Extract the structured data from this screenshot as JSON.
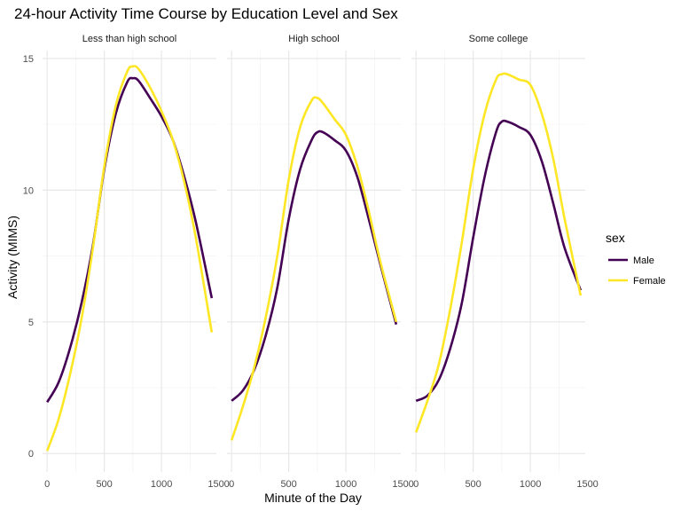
{
  "chart_data": {
    "type": "line",
    "title": "24-hour Activity Time Course by Education Level and Sex",
    "xlabel": "Minute of the Day",
    "ylabel": "Activity (MIMS)",
    "xlim": [
      -40,
      1480
    ],
    "ylim": [
      -0.7,
      15.3
    ],
    "x_ticks": [
      0,
      500,
      1000,
      1500
    ],
    "y_ticks": [
      0,
      5,
      10,
      15
    ],
    "grid": true,
    "legend": {
      "title": "sex",
      "position": "right"
    },
    "panels": [
      {
        "label": "Less than high school",
        "series": [
          {
            "name": "Male",
            "color": "#440154",
            "x": [
              0,
              100,
              200,
              300,
              400,
              500,
              600,
              700,
              750,
              800,
              900,
              1000,
              1100,
              1200,
              1300,
              1440
            ],
            "y": [
              1.95,
              2.7,
              4.0,
              5.7,
              7.9,
              10.8,
              12.9,
              14.1,
              14.25,
              14.15,
              13.5,
              12.8,
              11.9,
              10.5,
              8.8,
              5.9
            ]
          },
          {
            "name": "Female",
            "color": "#FDE725",
            "x": [
              0,
              100,
              200,
              300,
              400,
              500,
              600,
              700,
              750,
              800,
              900,
              1000,
              1100,
              1200,
              1300,
              1440
            ],
            "y": [
              0.1,
              1.3,
              3.0,
              5.1,
              7.8,
              10.9,
              13.2,
              14.5,
              14.7,
              14.6,
              13.9,
              13.0,
              11.9,
              10.3,
              8.2,
              4.6
            ]
          }
        ]
      },
      {
        "label": "High school",
        "series": [
          {
            "name": "Male",
            "color": "#440154",
            "x": [
              0,
              100,
              200,
              300,
              400,
              500,
              600,
              700,
              750,
              800,
              900,
              1000,
              1100,
              1200,
              1300,
              1440
            ],
            "y": [
              2.0,
              2.4,
              3.2,
              4.5,
              6.3,
              8.9,
              10.8,
              11.9,
              12.2,
              12.2,
              11.9,
              11.5,
              10.5,
              8.9,
              7.2,
              4.9
            ]
          },
          {
            "name": "Female",
            "color": "#FDE725",
            "x": [
              0,
              100,
              200,
              300,
              400,
              500,
              600,
              700,
              750,
              800,
              900,
              1000,
              1100,
              1200,
              1300,
              1440
            ],
            "y": [
              0.5,
              1.8,
              3.3,
              5.2,
              7.5,
              10.4,
              12.4,
              13.4,
              13.5,
              13.3,
              12.7,
              12.1,
              10.9,
              9.2,
              7.3,
              5.0
            ]
          }
        ]
      },
      {
        "label": "Some college",
        "series": [
          {
            "name": "Male",
            "color": "#440154",
            "x": [
              0,
              100,
              200,
              300,
              400,
              500,
              600,
              700,
              750,
              800,
              900,
              1000,
              1100,
              1200,
              1300,
              1440
            ],
            "y": [
              2.0,
              2.2,
              2.8,
              4.0,
              5.7,
              8.2,
              10.5,
              12.2,
              12.6,
              12.6,
              12.4,
              12.1,
              11.1,
              9.5,
              7.8,
              6.2
            ]
          },
          {
            "name": "Female",
            "color": "#FDE725",
            "x": [
              0,
              100,
              200,
              300,
              400,
              500,
              600,
              700,
              750,
              800,
              900,
              1000,
              1100,
              1200,
              1300,
              1440
            ],
            "y": [
              0.8,
              2.0,
              3.4,
              5.5,
              8.0,
              10.8,
              12.9,
              14.2,
              14.4,
              14.4,
              14.2,
              14.0,
              12.9,
              11.2,
              8.9,
              6.0
            ]
          }
        ]
      }
    ]
  }
}
